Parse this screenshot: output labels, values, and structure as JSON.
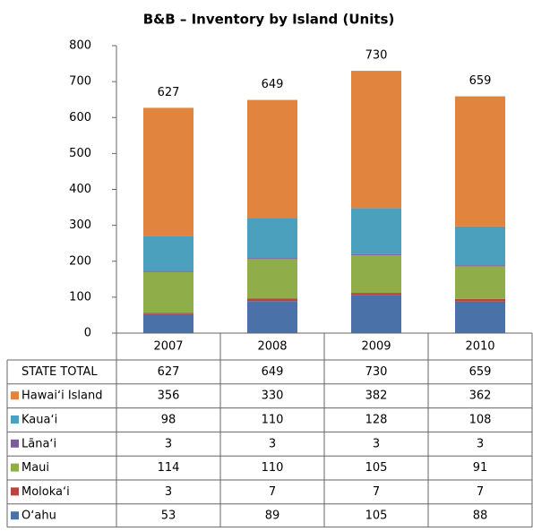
{
  "chart_data": {
    "type": "stacked_bar",
    "title": "B&B – Inventory by Island (Units)",
    "categories": [
      "2007",
      "2008",
      "2009",
      "2010"
    ],
    "totals_name": "STATE TOTAL",
    "totals": [
      627,
      649,
      730,
      659
    ],
    "series": [
      {
        "name": "Hawaiʻi Island",
        "color": "#e0843e",
        "values": [
          356,
          330,
          382,
          362
        ]
      },
      {
        "name": "Kauaʻi",
        "color": "#4ba0be",
        "values": [
          98,
          110,
          128,
          108
        ]
      },
      {
        "name": "Lānaʻi",
        "color": "#7a5c9e",
        "values": [
          3,
          3,
          3,
          3
        ]
      },
      {
        "name": "Maui",
        "color": "#8fae4a",
        "values": [
          114,
          110,
          105,
          91
        ]
      },
      {
        "name": "Molokaʻi",
        "color": "#b84540",
        "values": [
          3,
          7,
          7,
          7
        ]
      },
      {
        "name": "Oʻahu",
        "color": "#4a72a8",
        "values": [
          53,
          89,
          105,
          88
        ]
      }
    ],
    "ylim": [
      0,
      800
    ],
    "yticks": [
      0,
      100,
      200,
      300,
      400,
      500,
      600,
      700,
      800
    ],
    "grid": false
  }
}
